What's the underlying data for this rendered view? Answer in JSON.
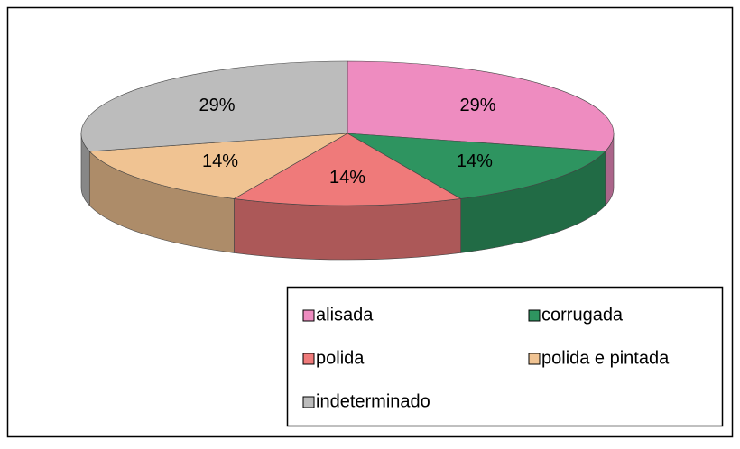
{
  "chart_data": {
    "type": "pie",
    "categories": [
      "alisada",
      "corrugada",
      "polida",
      "polida e pintada",
      "indeterminado"
    ],
    "values": [
      29,
      14,
      14,
      14,
      29
    ],
    "value_labels": [
      "29%",
      "14%",
      "14%",
      "14%",
      "29%"
    ],
    "colors": [
      "#ee8cc0",
      "#2e9460",
      "#ef7a7a",
      "#f0c392",
      "#bcbcbc"
    ],
    "legend": "bottom-right"
  }
}
